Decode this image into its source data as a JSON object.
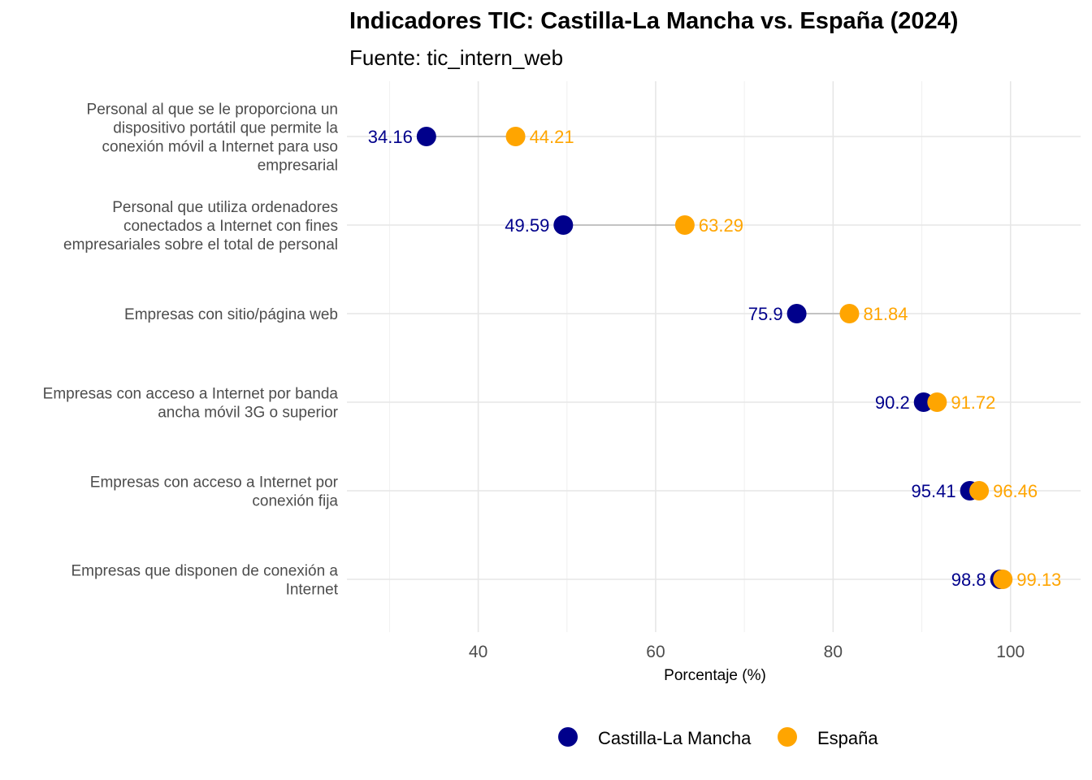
{
  "chart_data": {
    "type": "dumbbell",
    "title": "Indicadores TIC: Castilla-La Mancha vs. España (2024)",
    "subtitle": "Fuente: tic_intern_web",
    "xlabel": "Porcentaje (%)",
    "ylabel": "",
    "xlim": [
      25.2,
      107.9
    ],
    "xticks": [
      40,
      60,
      80,
      100
    ],
    "grid": true,
    "legend_position": "bottom",
    "categories": [
      [
        "Personal al que se le proporciona un",
        "dispositivo portátil que permite la",
        "conexión móvil a Internet para uso",
        "empresarial"
      ],
      [
        "Personal que utiliza ordenadores",
        "conectados a Internet con fines",
        "empresariales sobre el total de personal"
      ],
      [
        "Empresas con sitio/página web"
      ],
      [
        "Empresas con acceso a Internet por banda",
        "ancha móvil 3G o superior"
      ],
      [
        "Empresas con acceso a Internet por",
        "conexión fija"
      ],
      [
        "Empresas que disponen de conexión a",
        "Internet"
      ]
    ],
    "series": [
      {
        "name": "Castilla-La Mancha",
        "color": "#00008b",
        "values": [
          34.16,
          49.59,
          75.9,
          90.2,
          95.41,
          98.8
        ]
      },
      {
        "name": "España",
        "color": "#ffa500",
        "values": [
          44.21,
          63.29,
          81.84,
          91.72,
          96.46,
          99.13
        ]
      }
    ]
  }
}
